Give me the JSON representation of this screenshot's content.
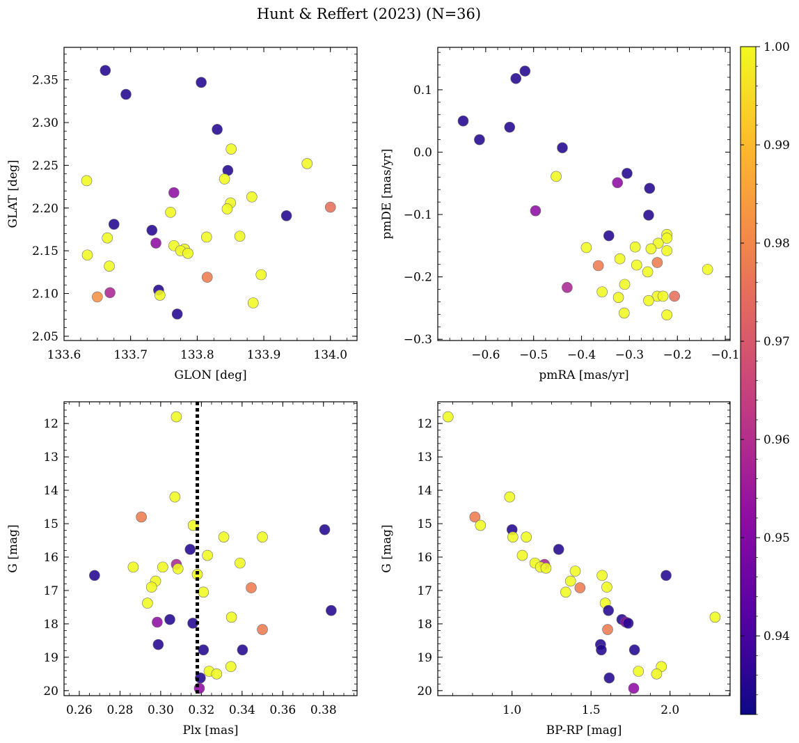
{
  "chart_data": {
    "title": "Hunt & Reffert (2023) (N=36)",
    "colorbar": {
      "range": [
        0.932,
        1.0
      ],
      "ticks": [
        "0.94",
        "0.95",
        "0.96",
        "0.97",
        "0.98",
        "0.99",
        "1.00"
      ],
      "tick_values": [
        0.94,
        0.95,
        0.96,
        0.97,
        0.98,
        0.99,
        1.0
      ],
      "colormap": "plasma"
    },
    "panels": [
      {
        "type": "scatter",
        "xlabel": "GLON [deg]",
        "ylabel": "GLAT [deg]",
        "xlim": [
          133.6,
          134.04
        ],
        "ylim": [
          2.045,
          2.388
        ],
        "xticks": [
          "133.6",
          "133.7",
          "133.8",
          "133.9",
          "134.0"
        ],
        "xtick_values": [
          133.6,
          133.7,
          133.8,
          133.9,
          134.0
        ],
        "yticks": [
          "2.05",
          "2.10",
          "2.15",
          "2.20",
          "2.25",
          "2.30",
          "2.35"
        ],
        "ytick_values": [
          2.05,
          2.1,
          2.15,
          2.2,
          2.25,
          2.3,
          2.35
        ],
        "points": [
          {
            "x": 133.662,
            "y": 2.361,
            "c": 0.935
          },
          {
            "x": 133.693,
            "y": 2.333,
            "c": 0.935
          },
          {
            "x": 133.806,
            "y": 2.347,
            "c": 0.935
          },
          {
            "x": 133.83,
            "y": 2.292,
            "c": 0.935
          },
          {
            "x": 133.851,
            "y": 2.269,
            "c": 1.0
          },
          {
            "x": 133.846,
            "y": 2.244,
            "c": 0.935
          },
          {
            "x": 133.965,
            "y": 2.252,
            "c": 1.0
          },
          {
            "x": 133.634,
            "y": 2.232,
            "c": 1.0
          },
          {
            "x": 133.841,
            "y": 2.234,
            "c": 1.0
          },
          {
            "x": 133.765,
            "y": 2.218,
            "c": 0.952
          },
          {
            "x": 133.882,
            "y": 2.213,
            "c": 1.0
          },
          {
            "x": 133.85,
            "y": 2.206,
            "c": 1.0
          },
          {
            "x": 134.0,
            "y": 2.201,
            "c": 0.975
          },
          {
            "x": 133.845,
            "y": 2.199,
            "c": 1.0
          },
          {
            "x": 133.76,
            "y": 2.195,
            "c": 1.0
          },
          {
            "x": 133.934,
            "y": 2.191,
            "c": 0.935
          },
          {
            "x": 133.675,
            "y": 2.181,
            "c": 0.935
          },
          {
            "x": 133.732,
            "y": 2.174,
            "c": 0.935
          },
          {
            "x": 133.864,
            "y": 2.167,
            "c": 1.0
          },
          {
            "x": 133.814,
            "y": 2.166,
            "c": 1.0
          },
          {
            "x": 133.665,
            "y": 2.165,
            "c": 1.0
          },
          {
            "x": 133.738,
            "y": 2.159,
            "c": 0.952
          },
          {
            "x": 133.765,
            "y": 2.156,
            "c": 1.0
          },
          {
            "x": 133.781,
            "y": 2.152,
            "c": 1.0
          },
          {
            "x": 133.775,
            "y": 2.15,
            "c": 1.0
          },
          {
            "x": 133.786,
            "y": 2.147,
            "c": 1.0
          },
          {
            "x": 133.635,
            "y": 2.145,
            "c": 1.0
          },
          {
            "x": 133.668,
            "y": 2.132,
            "c": 1.0
          },
          {
            "x": 133.896,
            "y": 2.122,
            "c": 1.0
          },
          {
            "x": 133.815,
            "y": 2.119,
            "c": 0.978
          },
          {
            "x": 133.742,
            "y": 2.104,
            "c": 0.935
          },
          {
            "x": 133.669,
            "y": 2.101,
            "c": 0.958
          },
          {
            "x": 133.744,
            "y": 2.098,
            "c": 1.0
          },
          {
            "x": 133.65,
            "y": 2.096,
            "c": 0.982
          },
          {
            "x": 133.884,
            "y": 2.089,
            "c": 1.0
          },
          {
            "x": 133.77,
            "y": 2.076,
            "c": 0.935
          }
        ]
      },
      {
        "type": "scatter",
        "xlabel": "pmRA [mas/yr]",
        "ylabel": "pmDE [mas/yr]",
        "xlim": [
          -0.7,
          -0.09
        ],
        "ylim": [
          -0.302,
          0.168
        ],
        "xticks": [
          "−0.6",
          "−0.5",
          "−0.4",
          "−0.3",
          "−0.2",
          "−0.1"
        ],
        "xtick_values": [
          -0.6,
          -0.5,
          -0.4,
          -0.3,
          -0.2,
          -0.1
        ],
        "yticks": [
          "−0.3",
          "−0.2",
          "−0.1",
          "0.0",
          "0.1"
        ],
        "ytick_values": [
          -0.3,
          -0.2,
          -0.1,
          0.0,
          0.1
        ],
        "points": [
          {
            "x": -0.518,
            "y": 0.13,
            "c": 0.935
          },
          {
            "x": -0.537,
            "y": 0.118,
            "c": 0.935
          },
          {
            "x": -0.647,
            "y": 0.05,
            "c": 0.935
          },
          {
            "x": -0.55,
            "y": 0.04,
            "c": 0.935
          },
          {
            "x": -0.613,
            "y": 0.02,
            "c": 0.935
          },
          {
            "x": -0.44,
            "y": 0.007,
            "c": 0.935
          },
          {
            "x": -0.305,
            "y": -0.034,
            "c": 0.935
          },
          {
            "x": -0.453,
            "y": -0.039,
            "c": 1.0
          },
          {
            "x": -0.325,
            "y": -0.049,
            "c": 0.952
          },
          {
            "x": -0.258,
            "y": -0.058,
            "c": 0.935
          },
          {
            "x": -0.496,
            "y": -0.094,
            "c": 0.952
          },
          {
            "x": -0.26,
            "y": -0.101,
            "c": 0.935
          },
          {
            "x": -0.222,
            "y": -0.132,
            "c": 1.0
          },
          {
            "x": -0.343,
            "y": -0.134,
            "c": 0.935
          },
          {
            "x": -0.222,
            "y": -0.138,
            "c": 1.0
          },
          {
            "x": -0.24,
            "y": -0.146,
            "c": 1.0
          },
          {
            "x": -0.288,
            "y": -0.152,
            "c": 1.0
          },
          {
            "x": -0.39,
            "y": -0.153,
            "c": 1.0
          },
          {
            "x": -0.255,
            "y": -0.155,
            "c": 1.0
          },
          {
            "x": -0.222,
            "y": -0.158,
            "c": 1.0
          },
          {
            "x": -0.32,
            "y": -0.171,
            "c": 1.0
          },
          {
            "x": -0.242,
            "y": -0.177,
            "c": 0.978
          },
          {
            "x": -0.285,
            "y": -0.181,
            "c": 1.0
          },
          {
            "x": -0.365,
            "y": -0.182,
            "c": 0.978
          },
          {
            "x": -0.137,
            "y": -0.188,
            "c": 1.0
          },
          {
            "x": -0.262,
            "y": -0.192,
            "c": 1.0
          },
          {
            "x": -0.31,
            "y": -0.212,
            "c": 1.0
          },
          {
            "x": -0.43,
            "y": -0.217,
            "c": 0.958
          },
          {
            "x": -0.357,
            "y": -0.224,
            "c": 1.0
          },
          {
            "x": -0.242,
            "y": -0.231,
            "c": 1.0
          },
          {
            "x": -0.23,
            "y": -0.231,
            "c": 1.0
          },
          {
            "x": -0.206,
            "y": -0.231,
            "c": 0.975
          },
          {
            "x": -0.323,
            "y": -0.233,
            "c": 1.0
          },
          {
            "x": -0.26,
            "y": -0.238,
            "c": 1.0
          },
          {
            "x": -0.311,
            "y": -0.258,
            "c": 1.0
          },
          {
            "x": -0.222,
            "y": -0.261,
            "c": 1.0
          }
        ]
      },
      {
        "type": "scatter",
        "xlabel": "Plx [mas]",
        "ylabel": "G [mag]",
        "xlim": [
          0.2525,
          0.3965
        ],
        "ylim": [
          20.15,
          11.35
        ],
        "y_inverted": true,
        "vline": {
          "x": 0.318,
          "style": "dotted"
        },
        "xticks": [
          "0.26",
          "0.28",
          "0.30",
          "0.32",
          "0.34",
          "0.36",
          "0.38"
        ],
        "xtick_values": [
          0.26,
          0.28,
          0.3,
          0.32,
          0.34,
          0.36,
          0.38
        ],
        "yticks": [
          "12",
          "13",
          "14",
          "15",
          "16",
          "17",
          "18",
          "19",
          "20"
        ],
        "ytick_values": [
          12,
          13,
          14,
          15,
          16,
          17,
          18,
          19,
          20
        ],
        "points": [
          {
            "x": 0.3077,
            "y": 11.8,
            "c": 1.0
          },
          {
            "x": 0.307,
            "y": 14.2,
            "c": 1.0
          },
          {
            "x": 0.2905,
            "y": 14.8,
            "c": 0.978
          },
          {
            "x": 0.316,
            "y": 15.05,
            "c": 1.0
          },
          {
            "x": 0.3806,
            "y": 15.18,
            "c": 0.935
          },
          {
            "x": 0.331,
            "y": 15.4,
            "c": 1.0
          },
          {
            "x": 0.35,
            "y": 15.4,
            "c": 1.0
          },
          {
            "x": 0.3145,
            "y": 15.77,
            "c": 0.935
          },
          {
            "x": 0.323,
            "y": 15.95,
            "c": 1.0
          },
          {
            "x": 0.339,
            "y": 16.18,
            "c": 1.0
          },
          {
            "x": 0.3077,
            "y": 16.22,
            "c": 0.958
          },
          {
            "x": 0.2865,
            "y": 16.3,
            "c": 1.0
          },
          {
            "x": 0.301,
            "y": 16.3,
            "c": 1.0
          },
          {
            "x": 0.3085,
            "y": 16.35,
            "c": 1.0
          },
          {
            "x": 0.318,
            "y": 16.52,
            "c": 1.0
          },
          {
            "x": 0.2675,
            "y": 16.55,
            "c": 0.935
          },
          {
            "x": 0.2975,
            "y": 16.72,
            "c": 1.0
          },
          {
            "x": 0.2955,
            "y": 16.9,
            "c": 1.0
          },
          {
            "x": 0.3445,
            "y": 16.92,
            "c": 0.978
          },
          {
            "x": 0.321,
            "y": 17.05,
            "c": 1.0
          },
          {
            "x": 0.2935,
            "y": 17.38,
            "c": 1.0
          },
          {
            "x": 0.3838,
            "y": 17.6,
            "c": 0.935
          },
          {
            "x": 0.3348,
            "y": 17.8,
            "c": 1.0
          },
          {
            "x": 0.3045,
            "y": 17.87,
            "c": 0.935
          },
          {
            "x": 0.2983,
            "y": 17.95,
            "c": 0.952
          },
          {
            "x": 0.3158,
            "y": 17.98,
            "c": 0.935
          },
          {
            "x": 0.35,
            "y": 18.17,
            "c": 0.978
          },
          {
            "x": 0.2988,
            "y": 18.62,
            "c": 0.935
          },
          {
            "x": 0.321,
            "y": 18.78,
            "c": 0.935
          },
          {
            "x": 0.3402,
            "y": 18.78,
            "c": 0.935
          },
          {
            "x": 0.3345,
            "y": 19.28,
            "c": 1.0
          },
          {
            "x": 0.3238,
            "y": 19.42,
            "c": 1.0
          },
          {
            "x": 0.3275,
            "y": 19.5,
            "c": 1.0
          },
          {
            "x": 0.3195,
            "y": 19.62,
            "c": 0.935
          },
          {
            "x": 0.319,
            "y": 19.93,
            "c": 0.952
          }
        ]
      },
      {
        "type": "scatter",
        "xlabel": "BP-RP [mag]",
        "ylabel": "G [mag]",
        "xlim": [
          0.53,
          2.38
        ],
        "ylim": [
          20.15,
          11.35
        ],
        "y_inverted": true,
        "xticks": [
          "1.0",
          "1.5",
          "2.0"
        ],
        "xtick_values": [
          1.0,
          1.5,
          2.0
        ],
        "yticks": [
          "12",
          "13",
          "14",
          "15",
          "16",
          "17",
          "18",
          "19",
          "20"
        ],
        "ytick_values": [
          12,
          13,
          14,
          15,
          16,
          17,
          18,
          19,
          20
        ],
        "points": [
          {
            "x": 0.595,
            "y": 11.8,
            "c": 1.0
          },
          {
            "x": 0.985,
            "y": 14.2,
            "c": 1.0
          },
          {
            "x": 0.765,
            "y": 14.8,
            "c": 0.978
          },
          {
            "x": 0.8,
            "y": 15.05,
            "c": 1.0
          },
          {
            "x": 1.0,
            "y": 15.18,
            "c": 0.935
          },
          {
            "x": 1.005,
            "y": 15.4,
            "c": 1.0
          },
          {
            "x": 1.09,
            "y": 15.4,
            "c": 1.0
          },
          {
            "x": 1.295,
            "y": 15.77,
            "c": 0.935
          },
          {
            "x": 1.065,
            "y": 15.95,
            "c": 1.0
          },
          {
            "x": 1.145,
            "y": 16.18,
            "c": 1.0
          },
          {
            "x": 1.205,
            "y": 16.22,
            "c": 0.958
          },
          {
            "x": 1.18,
            "y": 16.3,
            "c": 1.0
          },
          {
            "x": 1.215,
            "y": 16.33,
            "c": 1.0
          },
          {
            "x": 1.4,
            "y": 16.42,
            "c": 1.0
          },
          {
            "x": 1.57,
            "y": 16.55,
            "c": 1.0
          },
          {
            "x": 1.975,
            "y": 16.55,
            "c": 0.935
          },
          {
            "x": 1.37,
            "y": 16.72,
            "c": 1.0
          },
          {
            "x": 1.6,
            "y": 16.9,
            "c": 1.0
          },
          {
            "x": 1.43,
            "y": 16.92,
            "c": 0.978
          },
          {
            "x": 1.34,
            "y": 17.05,
            "c": 1.0
          },
          {
            "x": 1.59,
            "y": 17.38,
            "c": 1.0
          },
          {
            "x": 1.61,
            "y": 17.6,
            "c": 0.935
          },
          {
            "x": 2.285,
            "y": 17.8,
            "c": 1.0
          },
          {
            "x": 1.695,
            "y": 17.87,
            "c": 0.935
          },
          {
            "x": 1.72,
            "y": 17.95,
            "c": 0.952
          },
          {
            "x": 1.735,
            "y": 17.98,
            "c": 0.935
          },
          {
            "x": 1.605,
            "y": 18.17,
            "c": 0.978
          },
          {
            "x": 1.56,
            "y": 18.62,
            "c": 0.935
          },
          {
            "x": 1.565,
            "y": 18.78,
            "c": 0.935
          },
          {
            "x": 1.775,
            "y": 18.78,
            "c": 0.935
          },
          {
            "x": 1.945,
            "y": 19.28,
            "c": 1.0
          },
          {
            "x": 1.8,
            "y": 19.42,
            "c": 1.0
          },
          {
            "x": 1.915,
            "y": 19.5,
            "c": 1.0
          },
          {
            "x": 1.615,
            "y": 19.62,
            "c": 0.935
          },
          {
            "x": 1.77,
            "y": 19.93,
            "c": 0.952
          }
        ]
      }
    ]
  }
}
